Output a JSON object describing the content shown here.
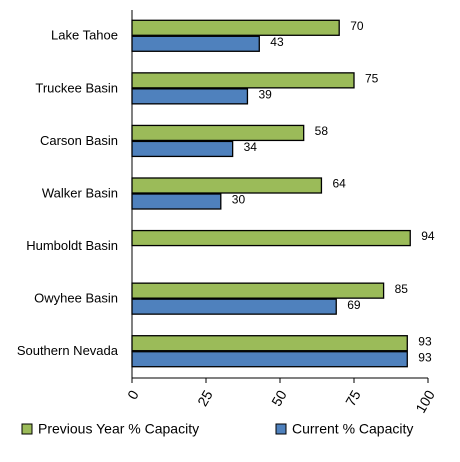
{
  "chart_data": {
    "type": "bar",
    "orientation": "horizontal",
    "categories": [
      "Lake Tahoe",
      "Truckee Basin",
      "Carson Basin",
      "Walker Basin",
      "Humboldt Basin",
      "Owyhee Basin",
      "Southern Nevada"
    ],
    "series": [
      {
        "name": "Previous Year % Capacity",
        "color": "#9bbb59",
        "values": [
          70,
          75,
          58,
          64,
          94,
          85,
          93
        ]
      },
      {
        "name": "Current % Capacity",
        "color": "#4f81bd",
        "values": [
          43,
          39,
          34,
          30,
          null,
          69,
          93
        ]
      }
    ],
    "xlim": [
      0,
      100
    ],
    "xticks": [
      0,
      25,
      50,
      75,
      100
    ],
    "grid": false,
    "legend": "bottom"
  }
}
